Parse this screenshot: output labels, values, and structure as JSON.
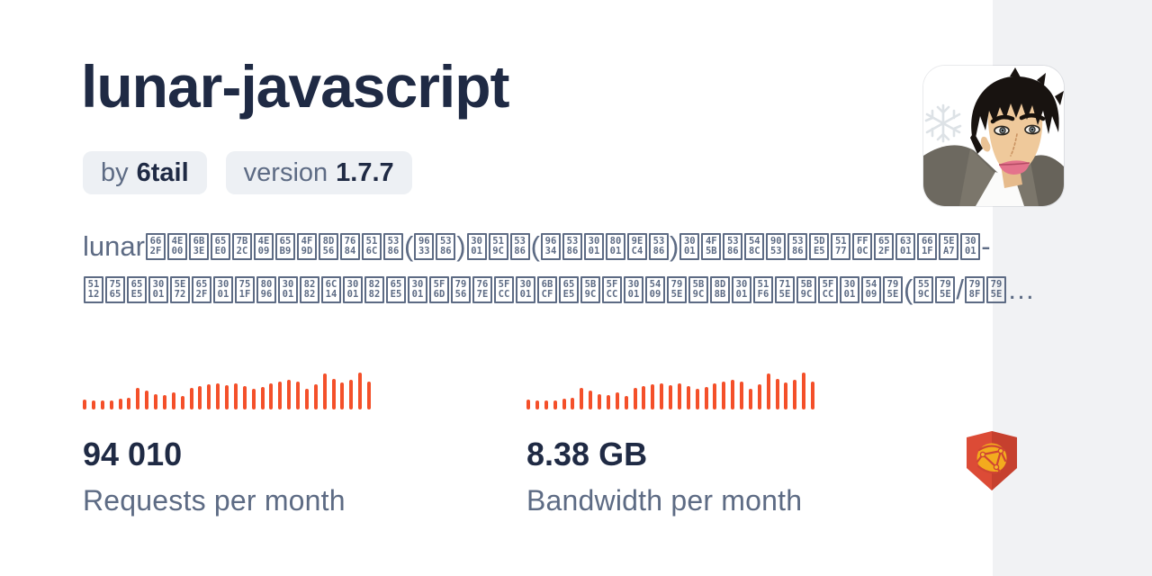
{
  "header": {
    "title": "lunar-javascript",
    "author_badge": {
      "prefix": "by",
      "value": "6tail"
    },
    "version_badge": {
      "prefix": "version",
      "value": "1.7.7"
    }
  },
  "description": {
    "text": "lunar是一款无第三方依赖的公历(阳历)、农历(阴历、老黄历)、佛历和道历工具，支持星座、儒略日、干支、生肖、节气、节日、彭祖百忌、每日宜忌、吉神宜趋、凶煞宜忌、吉神(喜神/福神…",
    "lines": [
      "lunar是一款无第三方依赖的公历(阳历)、农历(阴历、老黄历)、佛历和道历工具，支持星座、-",
      "儒略日、干支、生肖、节气、节日、彭祖百忌、每日宜忌、吉神宜趋、凶煞宜忌、吉神(喜神/福神…"
    ]
  },
  "stats": [
    {
      "id": "requests",
      "value": "94 010",
      "label": "Requests per month"
    },
    {
      "id": "bandwidth",
      "value": "8.38 GB",
      "label": "Bandwidth per month"
    }
  ],
  "icons": {
    "author_avatar": "cartoon-man-portrait-avatar",
    "jsdelivr_logo": "jsdelivr-shield-globe-logo",
    "snowflake": "snowflake-icon"
  },
  "colors": {
    "background": "#ffffff",
    "accent_band": "#f1f2f4",
    "title_text": "#1f2a44",
    "muted_text": "#5d6b84",
    "badge_background": "#edf0f4",
    "bar_orange": "#f4502a",
    "logo_red": "#dc4b36",
    "logo_red_shade": "#c6402e",
    "logo_yellow": "#f3ab1e"
  },
  "chart_data": [
    {
      "type": "bar",
      "title": "Requests per month sparkline",
      "unit": "relative-height-percent",
      "values": [
        24,
        21,
        22,
        22,
        25,
        28,
        52,
        46,
        38,
        35,
        41,
        33,
        52,
        56,
        61,
        64,
        59,
        62,
        56,
        50,
        55,
        64,
        68,
        71,
        68,
        51,
        60,
        88,
        74,
        65,
        72,
        90,
        68
      ],
      "color": "#f4502a",
      "ylim": [
        0,
        100
      ],
      "grid": false,
      "axes": false
    },
    {
      "type": "bar",
      "title": "Bandwidth per month sparkline",
      "unit": "relative-height-percent",
      "values": [
        24,
        21,
        22,
        22,
        25,
        28,
        52,
        46,
        38,
        35,
        41,
        33,
        52,
        56,
        61,
        64,
        59,
        62,
        56,
        50,
        55,
        64,
        68,
        71,
        68,
        51,
        60,
        88,
        74,
        65,
        72,
        90,
        68
      ],
      "color": "#f4502a",
      "ylim": [
        0,
        100
      ],
      "grid": false,
      "axes": false
    }
  ]
}
